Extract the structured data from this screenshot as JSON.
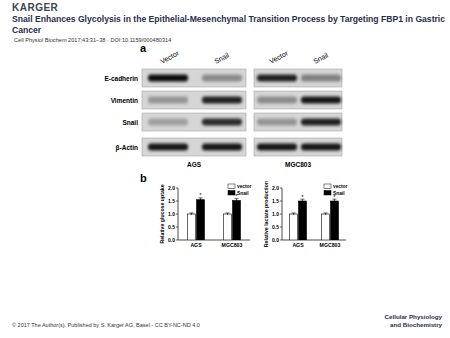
{
  "header": {
    "logo": "KARGER",
    "title": "Snail Enhances Glycolysis in the Epithelial-Mesenchymal Transition Process by Targeting FBP1 in Gastric Cancer",
    "citation": "Cell Physiol Biochem 2017;43:31–38 · DOI:10.1159/000480314"
  },
  "figure": {
    "panel_a": {
      "label": "a",
      "lanes": [
        "Vector",
        "Snail",
        "Vector",
        "Snail"
      ],
      "proteins": [
        "E-cadherin",
        "Vimentin",
        "Snail",
        "β-Actin"
      ],
      "cell_lines": [
        "AGS",
        "MGC803"
      ]
    },
    "panel_b": {
      "label": "b"
    }
  },
  "chart_data": [
    {
      "type": "bar",
      "y_label": "Relative glucose uptake",
      "categories": [
        "AGS",
        "MGC803"
      ],
      "series": [
        {
          "name": "vector",
          "color": "#ffffff",
          "values": [
            1.0,
            1.0
          ],
          "errors": [
            0.04,
            0.04
          ]
        },
        {
          "name": "Snail",
          "color": "#000000",
          "values": [
            1.55,
            1.52
          ],
          "errors": [
            0.07,
            0.07
          ],
          "annotations": [
            "*",
            "*"
          ]
        }
      ],
      "ylim": [
        0,
        2
      ],
      "yticks": [
        {
          "value": 0,
          "label": "0.0"
        },
        {
          "value": 0.5,
          "label": "0.5"
        },
        {
          "value": 1,
          "label": "1.0"
        },
        {
          "value": 1.5,
          "label": "1.5"
        },
        {
          "value": 2,
          "label": "2.0"
        }
      ],
      "legend": "upper right",
      "grid": false
    },
    {
      "type": "bar",
      "y_label": "Relative lactate production",
      "categories": [
        "AGS",
        "MGC803"
      ],
      "series": [
        {
          "name": "vector",
          "color": "#ffffff",
          "values": [
            1.0,
            1.0
          ],
          "errors": [
            0.04,
            0.04
          ]
        },
        {
          "name": "Snail",
          "color": "#000000",
          "values": [
            1.5,
            1.5
          ],
          "errors": [
            0.07,
            0.07
          ],
          "annotations": [
            "*",
            "*"
          ]
        }
      ],
      "ylim": [
        0,
        2
      ],
      "yticks": [
        {
          "value": 0,
          "label": "0.0"
        },
        {
          "value": 0.5,
          "label": "0.5"
        },
        {
          "value": 1,
          "label": "1.0"
        },
        {
          "value": 1.5,
          "label": "1.5"
        },
        {
          "value": 2,
          "label": "2.0"
        }
      ],
      "legend": "upper right",
      "grid": false
    }
  ],
  "footer": {
    "copyright": "© 2017 The Author(s). Published by S. Karger AG, Basel - CC BY-NC-ND 4.0",
    "journal": [
      "Cellular Physiology",
      "and Biochemistry"
    ]
  }
}
